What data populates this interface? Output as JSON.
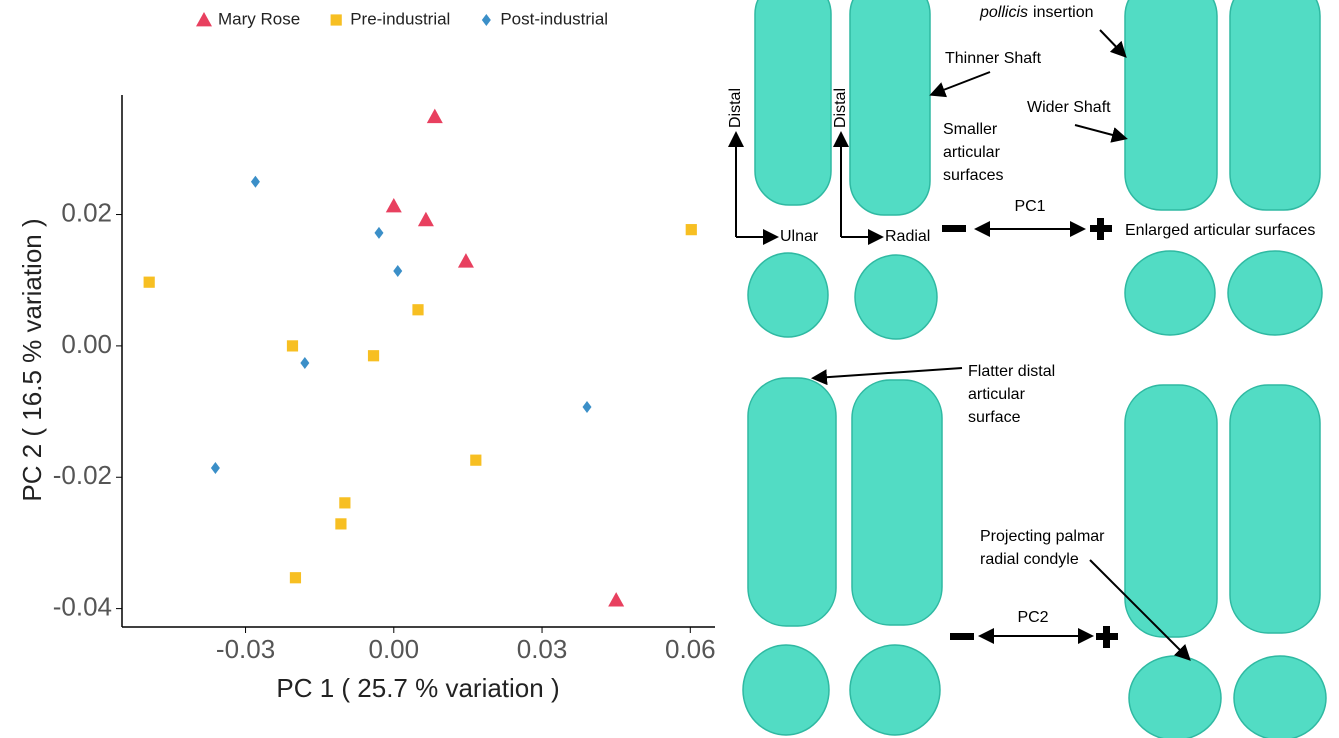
{
  "chart_data": {
    "type": "scatter",
    "xlabel": "PC 1 ( 25.7 % variation )",
    "ylabel": "PC 2 ( 16.5 % variation )",
    "xlim": [
      -0.055,
      0.065
    ],
    "ylim": [
      -0.0428,
      0.0382
    ],
    "xticks": [
      -0.03,
      {
        "value": 0,
        "label": "0.00"
      },
      0.03,
      0.06
    ],
    "yticks": [
      -0.04,
      -0.02,
      {
        "value": 0,
        "label": "0.00"
      },
      0.02
    ],
    "series": [
      {
        "name": "Mary Rose",
        "color": "#e8405f",
        "marker": "triangle",
        "x": [
          0.0083,
          0.0,
          0.0065,
          0.0146,
          0.045
        ],
        "values": [
          0.0349,
          0.0213,
          0.0192,
          0.0129,
          -0.0387
        ]
      },
      {
        "name": "Pre-industrial",
        "color": "#f7bf22",
        "marker": "square",
        "x": [
          -0.0495,
          0.0602,
          -0.0205,
          0.0049,
          -0.0041,
          0.0166,
          -0.0099,
          -0.0107,
          -0.0199
        ],
        "values": [
          0.0097,
          0.0177,
          0.0,
          0.0055,
          -0.0015,
          -0.0174,
          -0.0239,
          -0.0271,
          -0.0353
        ]
      },
      {
        "name": "Post-industrial",
        "color": "#3b8fc8",
        "marker": "diamond",
        "x": [
          -0.028,
          -0.003,
          0.0008,
          -0.018,
          0.0391,
          -0.0361
        ],
        "values": [
          0.025,
          0.0172,
          0.0114,
          -0.0026,
          -0.0093,
          -0.0186
        ]
      }
    ]
  },
  "illustration": {
    "axis_labels": [
      "Distal",
      "Ulnar",
      "Distal",
      "Radial"
    ],
    "insertion": {
      "italic": "pollicis",
      "rest": "insertion"
    },
    "thinner_shaft": "Thinner Shaft",
    "wider_shaft": "Wider Shaft",
    "smaller_surfaces": [
      "Smaller",
      "articular",
      "surfaces"
    ],
    "pc1": "PC1",
    "enlarged_surfaces": "Enlarged articular surfaces",
    "flatter_surface": [
      "Flatter distal",
      "articular",
      "surface"
    ],
    "projecting_condyle": [
      "Projecting palmar",
      "radial condyle"
    ],
    "pc2": "PC2"
  }
}
